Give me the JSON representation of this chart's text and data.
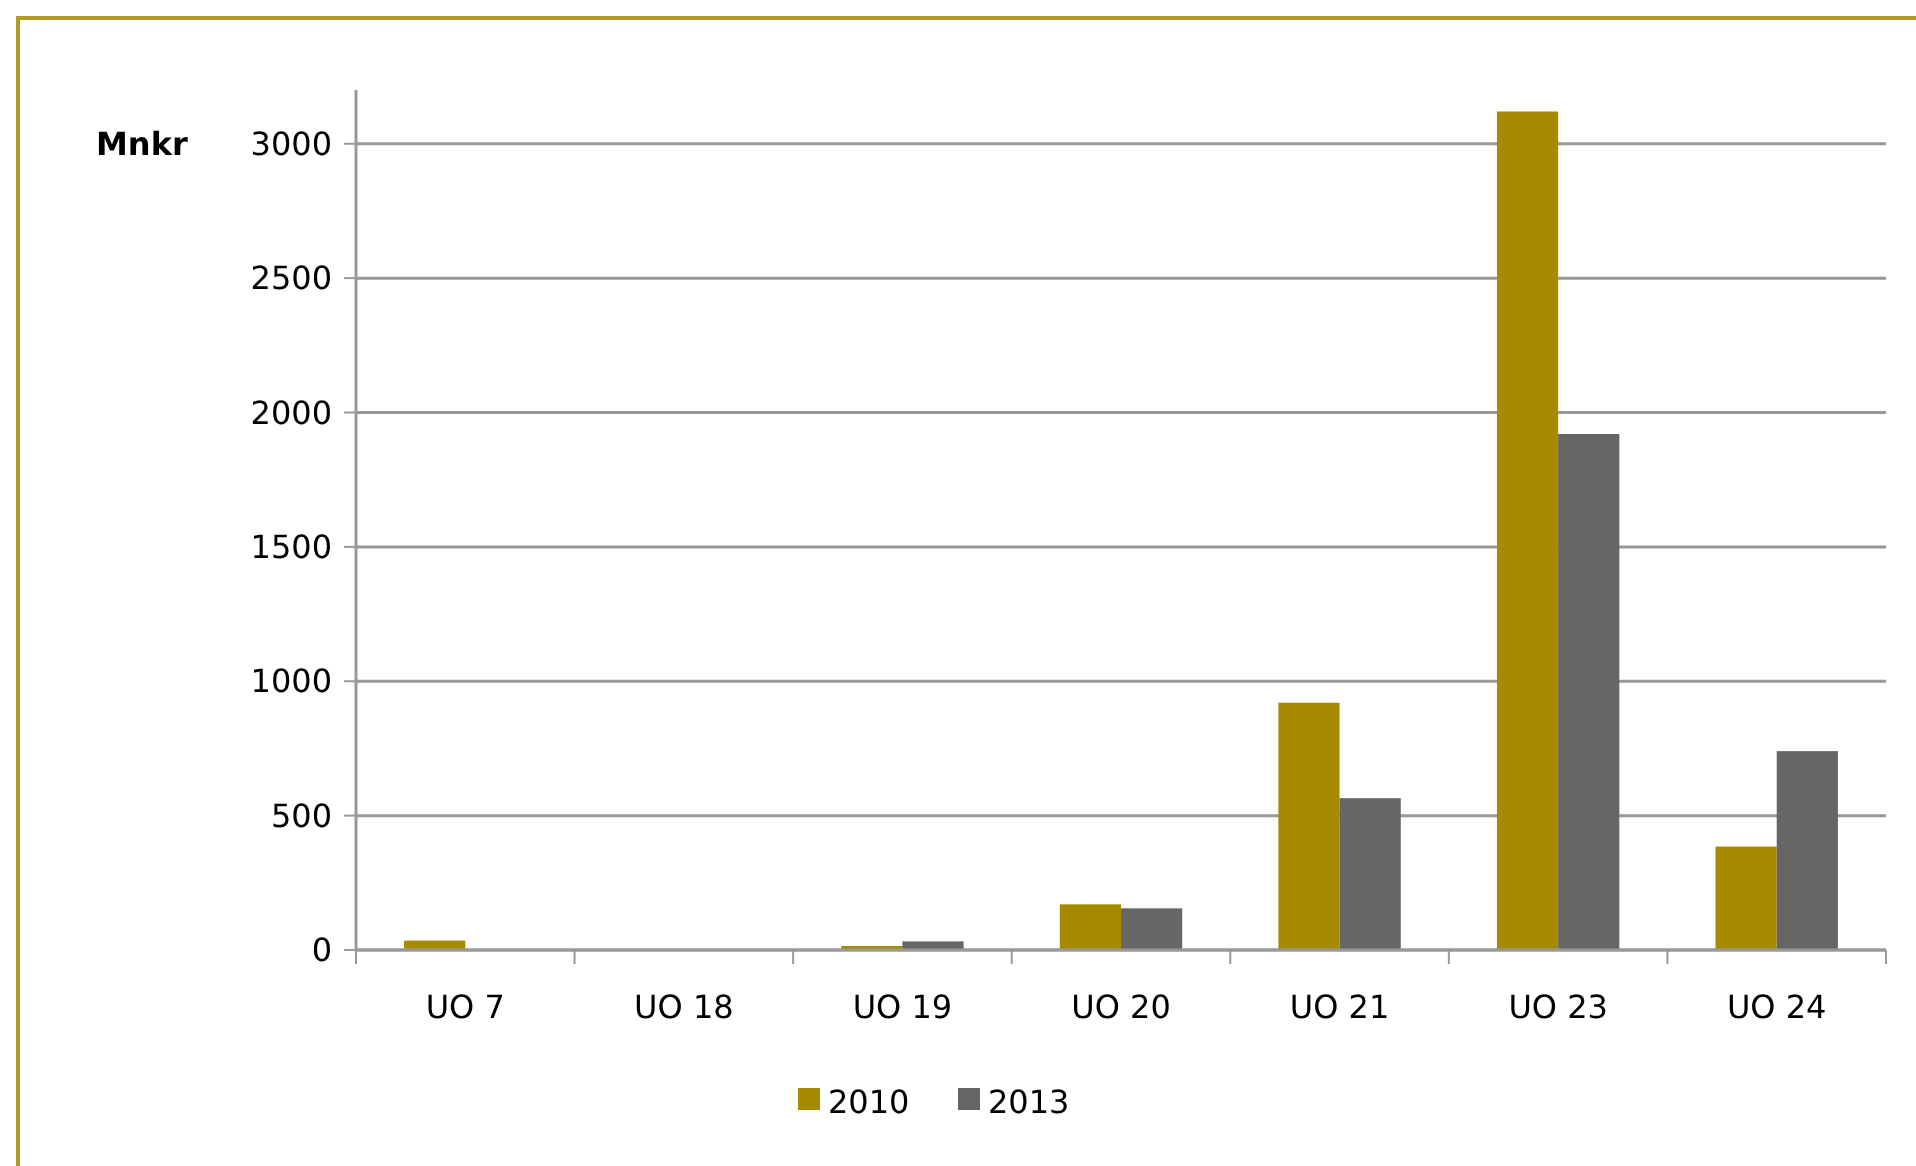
{
  "chart_data": {
    "type": "bar",
    "ylabel": "Mnkr",
    "categories": [
      "UO 7",
      "UO 18",
      "UO 19",
      "UO 20",
      "UO 21",
      "UO 23",
      "UO 24"
    ],
    "series": [
      {
        "name": "2010",
        "color": "#a68a00",
        "values": [
          35,
          null,
          15,
          170,
          920,
          3120,
          385
        ]
      },
      {
        "name": "2013",
        "color": "#666666",
        "values": [
          null,
          null,
          32,
          155,
          565,
          1920,
          740
        ]
      }
    ],
    "ylim": [
      0,
      3200
    ],
    "yticks": [
      0,
      500,
      1000,
      1500,
      2000,
      2500,
      3000
    ],
    "grid": "y",
    "legend": "bottom"
  }
}
